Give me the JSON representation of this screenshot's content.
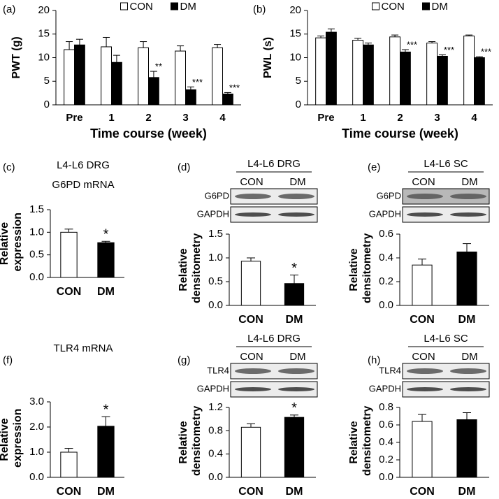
{
  "chart_data": [
    {
      "type": "grouped-bar",
      "panel": "(a)",
      "ylabel": "PWT (g)",
      "xlabel": "Time course (week)",
      "categories": [
        "Pre",
        "1",
        "2",
        "3",
        "4"
      ],
      "series": [
        {
          "name": "CON",
          "color": "#ffffff",
          "values": [
            11.7,
            12.3,
            12.1,
            11.4,
            12.1
          ],
          "errors": [
            1.7,
            2.0,
            1.3,
            1.1,
            0.7
          ]
        },
        {
          "name": "DM",
          "color": "#000000",
          "values": [
            12.7,
            9.0,
            5.8,
            3.2,
            2.3
          ],
          "errors": [
            1.2,
            1.5,
            1.3,
            0.6,
            0.3
          ],
          "sig": [
            null,
            null,
            "**",
            "***",
            "***"
          ]
        }
      ],
      "ylim": [
        0,
        20
      ],
      "yticks": [
        0,
        5,
        10,
        15,
        20
      ]
    },
    {
      "type": "grouped-bar",
      "panel": "(b)",
      "ylabel": "PWL (s)",
      "xlabel": "Time course (week)",
      "categories": [
        "Pre",
        "1",
        "2",
        "3",
        "4"
      ],
      "series": [
        {
          "name": "CON",
          "color": "#ffffff",
          "values": [
            14.2,
            13.7,
            14.4,
            13.1,
            14.6
          ],
          "errors": [
            0.4,
            0.4,
            0.4,
            0.3,
            0.2
          ]
        },
        {
          "name": "DM",
          "color": "#000000",
          "values": [
            15.4,
            12.7,
            11.2,
            10.3,
            10.0
          ],
          "errors": [
            0.7,
            0.4,
            0.5,
            0.3,
            0.2
          ],
          "sig": [
            null,
            null,
            "***",
            "***",
            "***"
          ]
        }
      ],
      "ylim": [
        0,
        20
      ],
      "yticks": [
        0,
        5,
        10,
        15,
        20
      ]
    },
    {
      "type": "bar",
      "panel": "(c)",
      "title": "L4-L6 DRG",
      "subtitle": "G6PD mRNA",
      "ylabel": "Relative expression",
      "categories": [
        "CON",
        "DM"
      ],
      "values": [
        1.0,
        0.77
      ],
      "errors": [
        0.07,
        0.03
      ],
      "colors": [
        "#ffffff",
        "#000000"
      ],
      "sig": [
        null,
        "*"
      ],
      "ylim": [
        0,
        1.5
      ],
      "yticks": [
        {
          "value": 0,
          "label": "0.0"
        },
        0.5,
        {
          "value": 1,
          "label": "1.0"
        },
        1.5
      ]
    },
    {
      "type": "bar",
      "panel": "(d)",
      "blot": {
        "title": "L4-L6 DRG",
        "lanes": [
          "CON",
          "DM"
        ],
        "rows": [
          "G6PD",
          "GAPDH"
        ]
      },
      "ylabel": "Relative densitometry",
      "categories": [
        "CON",
        "DM"
      ],
      "values": [
        0.93,
        0.46
      ],
      "errors": [
        0.07,
        0.18
      ],
      "colors": [
        "#ffffff",
        "#000000"
      ],
      "sig": [
        null,
        "*"
      ],
      "ylim": [
        0,
        1.5
      ],
      "yticks": [
        {
          "value": 0,
          "label": "0.0"
        },
        0.5,
        {
          "value": 1,
          "label": "1.0"
        },
        1.5
      ]
    },
    {
      "type": "bar",
      "panel": "(e)",
      "blot": {
        "title": "L4-L6 SC",
        "lanes": [
          "CON",
          "DM"
        ],
        "rows": [
          "G6PD",
          "GAPDH"
        ]
      },
      "ylabel": "Relative densitometry",
      "categories": [
        "CON",
        "DM"
      ],
      "values": [
        0.34,
        0.45
      ],
      "errors": [
        0.05,
        0.07
      ],
      "colors": [
        "#ffffff",
        "#000000"
      ],
      "ylim": [
        0,
        0.6
      ],
      "yticks": [
        {
          "value": 0,
          "label": "0.0"
        },
        0.2,
        0.4,
        0.6
      ]
    },
    {
      "type": "bar",
      "panel": "(f)",
      "title": "TLR4 mRNA",
      "ylabel": "Relative expression",
      "categories": [
        "CON",
        "DM"
      ],
      "values": [
        1.0,
        2.03
      ],
      "errors": [
        0.15,
        0.38
      ],
      "colors": [
        "#ffffff",
        "#000000"
      ],
      "sig": [
        null,
        "*"
      ],
      "ylim": [
        0,
        3
      ],
      "yticks": [
        {
          "value": 0,
          "label": "0.0"
        },
        {
          "value": 1,
          "label": "1.0"
        },
        {
          "value": 2,
          "label": "2.0"
        },
        {
          "value": 3,
          "label": "3.0"
        }
      ]
    },
    {
      "type": "bar",
      "panel": "(g)",
      "blot": {
        "title": "L4-L6 DRG",
        "lanes": [
          "CON",
          "DM"
        ],
        "rows": [
          "TLR4",
          "GAPDH"
        ]
      },
      "ylabel": "Relative densitometry",
      "categories": [
        "CON",
        "DM"
      ],
      "values": [
        0.86,
        1.03
      ],
      "errors": [
        0.06,
        0.04
      ],
      "colors": [
        "#ffffff",
        "#000000"
      ],
      "sig": [
        null,
        "*"
      ],
      "ylim": [
        0,
        1.2
      ],
      "yticks": [
        {
          "value": 0,
          "label": "0.0"
        },
        0.4,
        0.8,
        1.2
      ]
    },
    {
      "type": "bar",
      "panel": "(h)",
      "blot": {
        "title": "L4-L6 SC",
        "lanes": [
          "CON",
          "DM"
        ],
        "rows": [
          "TLR4",
          "GAPDH"
        ]
      },
      "ylabel": "Relative densitometry",
      "categories": [
        "CON",
        "DM"
      ],
      "values": [
        0.64,
        0.66
      ],
      "errors": [
        0.08,
        0.08
      ],
      "colors": [
        "#ffffff",
        "#000000"
      ],
      "ylim": [
        0,
        0.8
      ],
      "yticks": [
        {
          "value": 0,
          "label": "0.0"
        },
        0.2,
        0.4,
        0.6,
        0.8
      ]
    }
  ]
}
